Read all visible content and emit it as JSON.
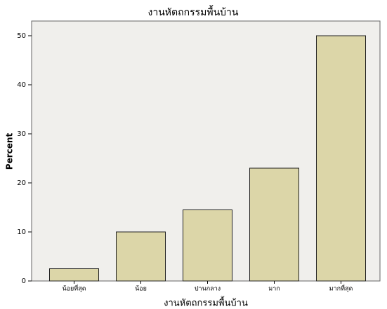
{
  "chart_data": {
    "type": "bar",
    "title": "งานหัตถกรรมพื้นบ้าน",
    "x_label": "งานหัตถกรรมพื้นบ้าน",
    "y_label": "Percent",
    "categories": [
      "น้อยที่สุด",
      "น้อย",
      "ปานกลาง",
      "มาก",
      "มากที่สุด"
    ],
    "values": [
      2.5,
      10,
      14.5,
      23,
      50
    ],
    "color": "#d8d19c",
    "ylim": [
      0,
      53
    ],
    "yticks": [
      0,
      10,
      20,
      30,
      40,
      50
    ],
    "grid": false
  }
}
